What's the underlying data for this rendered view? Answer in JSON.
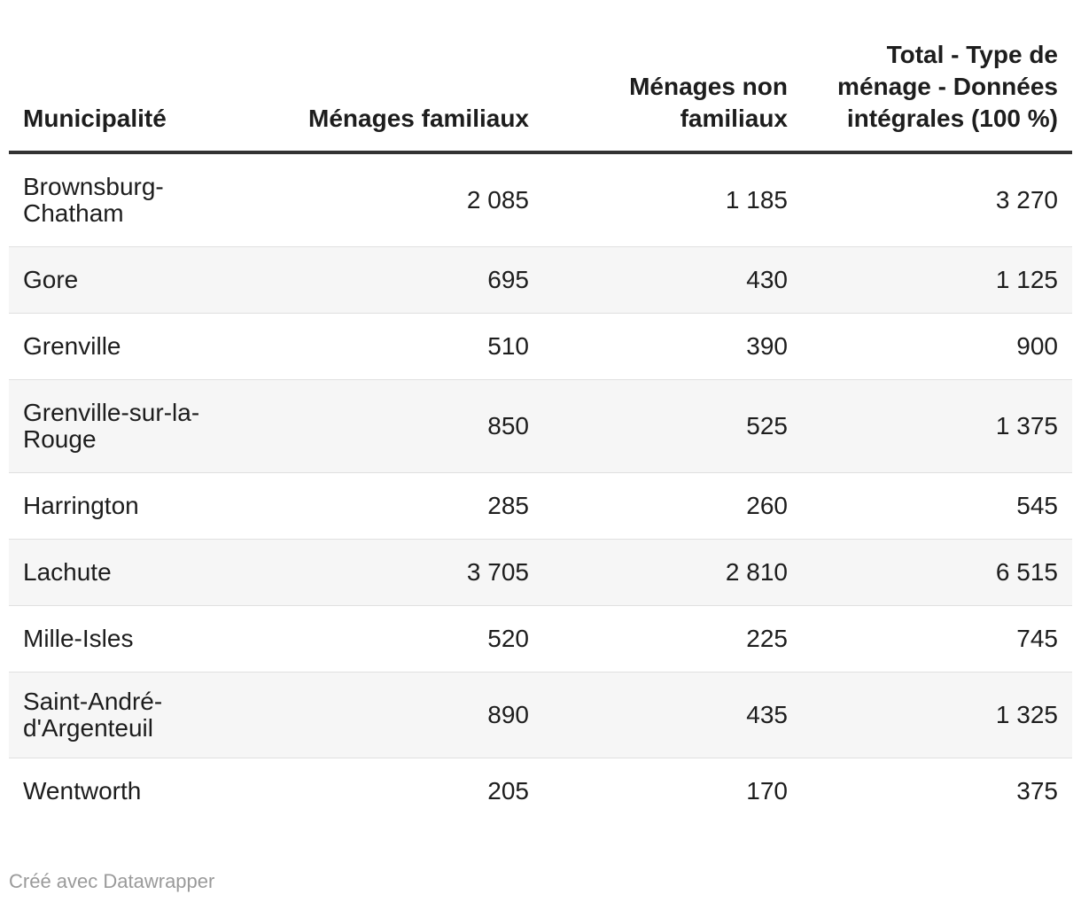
{
  "table": {
    "headers": [
      "Municipalité",
      "Ménages familiaux",
      "Ménages non familiaux",
      "Total - Type de ménage - Données intégrales (100 %)"
    ],
    "rows": [
      [
        "Brownsburg-Chatham",
        "2 085",
        "1 185",
        "3 270"
      ],
      [
        "Gore",
        "695",
        "430",
        "1 125"
      ],
      [
        "Grenville",
        "510",
        "390",
        "900"
      ],
      [
        "Grenville-sur-la-Rouge",
        "850",
        "525",
        "1 375"
      ],
      [
        "Harrington",
        "285",
        "260",
        "545"
      ],
      [
        "Lachute",
        "3 705",
        "2 810",
        "6 515"
      ],
      [
        "Mille-Isles",
        "520",
        "225",
        "745"
      ],
      [
        "Saint-André-d'Argenteuil",
        "890",
        "435",
        "1 325"
      ],
      [
        "Wentworth",
        "205",
        "170",
        "375"
      ]
    ]
  },
  "footer": {
    "credit": "Créé avec Datawrapper"
  }
}
